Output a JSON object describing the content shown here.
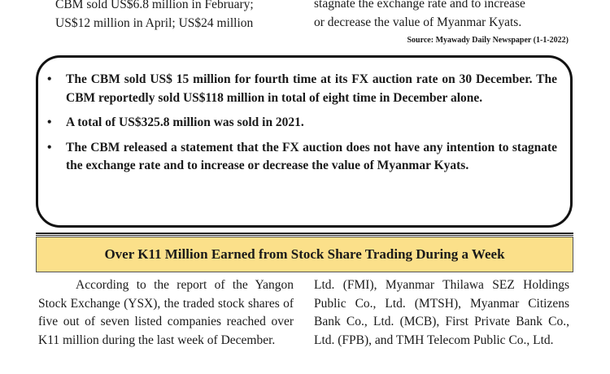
{
  "top_left": {
    "lines": [
      "CBM sold US$6.8 million in February;",
      "US$12 million in April; US$24 million"
    ]
  },
  "top_right": {
    "lines": [
      "stagnate the exchange rate and to increase",
      "or decrease the value of Myanmar Kyats."
    ]
  },
  "source": "Source: Myawady Daily Newspaper (1-1-2022)",
  "highlights": {
    "bullet_symbol": "•",
    "items": [
      "The CBM sold US$ 15 million for fourth time at its FX auction rate on 30 December. The CBM reportedly sold US$118 million in total of eight time in December alone.",
      "A total of US$325.8 million was sold in 2021.",
      "The CBM released a statement that the FX auction does not have any intention to stagnate the exchange rate and to increase or decrease the value of Myanmar Kyats."
    ]
  },
  "article": {
    "headline": "Over K11 Million Earned from Stock Share Trading During a Week",
    "banner_color": "#fbe08a",
    "left_paragraph": "According to the report of the Yangon Stock Exchange (YSX), the traded stock shares of five out of seven listed companies reached over        K11 million during the last week of December.",
    "right_paragraph": "Ltd. (FMI), Myanmar Thilawa SEZ Holdings Public Co., Ltd. (MTSH), Myanmar Citizens Bank Co., Ltd. (MCB), First Private Bank Co., Ltd. (FPB), and TMH Telecom Public Co., Ltd."
  }
}
